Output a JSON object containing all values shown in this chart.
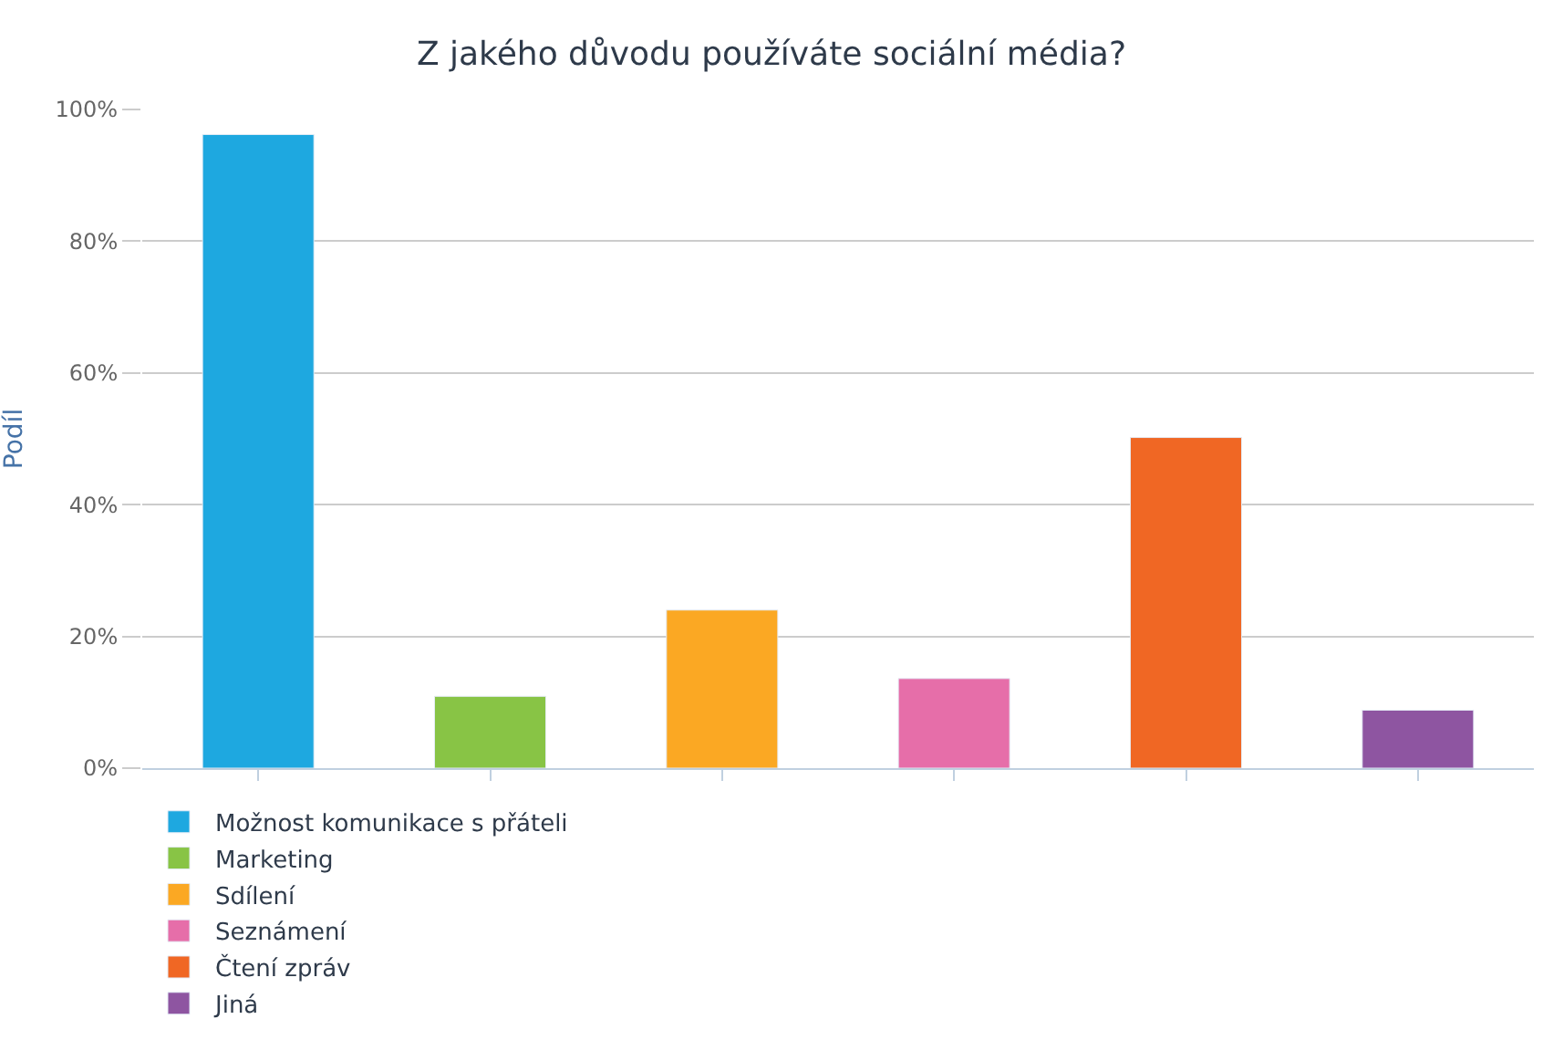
{
  "chart_data": {
    "type": "bar",
    "title": "Z jakého důvodu používáte sociální média?",
    "ylabel": "Podíl",
    "categories": [
      null,
      null,
      null,
      null,
      null,
      null
    ],
    "series": [
      {
        "name": "Možnost komunikace s přáteli",
        "color": "#1ea8e0",
        "values": [
          96.2,
          null,
          null,
          null,
          null,
          null
        ]
      },
      {
        "name": "Marketing",
        "color": "#88c445",
        "values": [
          null,
          10.9,
          null,
          null,
          null,
          null
        ]
      },
      {
        "name": "Sdílení",
        "color": "#fba823",
        "values": [
          null,
          null,
          24.0,
          null,
          null,
          null
        ]
      },
      {
        "name": "Seznámení",
        "color": "#e66ea9",
        "values": [
          null,
          null,
          null,
          13.6,
          null,
          null
        ]
      },
      {
        "name": "Čtení zpráv",
        "color": "#f06724",
        "values": [
          null,
          null,
          null,
          null,
          50.2,
          null
        ]
      },
      {
        "name": "Jiná",
        "color": "#8e55a1",
        "values": [
          null,
          null,
          null,
          null,
          null,
          8.8
        ]
      }
    ],
    "ylim": [
      0,
      100
    ],
    "yticks": [
      {
        "value": 0,
        "label": "0%"
      },
      {
        "value": 20,
        "label": "20%"
      },
      {
        "value": 40,
        "label": "40%"
      },
      {
        "value": 60,
        "label": "60%"
      },
      {
        "value": 80,
        "label": "80%"
      },
      {
        "value": 100,
        "label": "100%"
      }
    ],
    "grid": "y",
    "legend": "bottom"
  }
}
